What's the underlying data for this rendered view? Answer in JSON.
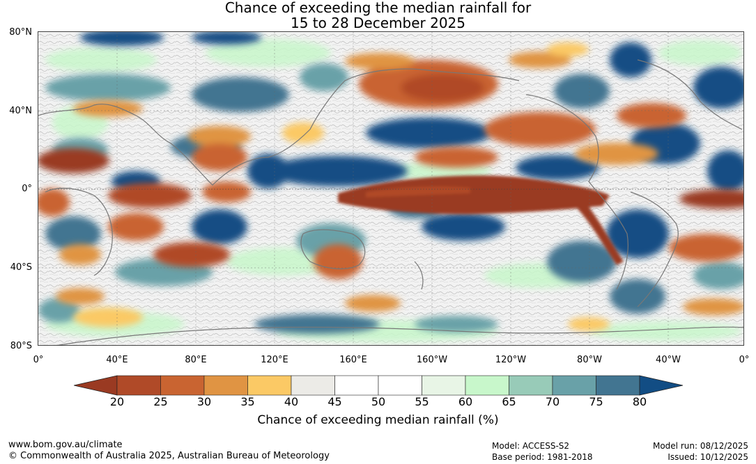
{
  "title": {
    "line1": "Chance of exceeding the median rainfall for",
    "line2": "15 to 28 December 2025"
  },
  "map": {
    "lat_labels": [
      "80°N",
      "40°N",
      "0°",
      "40°S",
      "80°S"
    ],
    "lon_labels": [
      "0°",
      "40°E",
      "80°E",
      "120°E",
      "160°E",
      "160°W",
      "120°W",
      "80°W",
      "40°W",
      "0°"
    ]
  },
  "colorbar": {
    "ticks": [
      "20",
      "25",
      "30",
      "35",
      "40",
      "45",
      "50",
      "55",
      "60",
      "65",
      "70",
      "75",
      "80"
    ],
    "colors": [
      "#9a3a22",
      "#b04a28",
      "#c96431",
      "#e09443",
      "#fbc965",
      "#ecebe7",
      "#ffffff",
      "#ffffff",
      "#e8f5e6",
      "#c8f7cb",
      "#98cbb8",
      "#69a1a8",
      "#427591",
      "#124d84"
    ],
    "label": "Chance of exceeding median rainfall (%)"
  },
  "footer": {
    "website": "www.bom.gov.au/climate",
    "copyright": "© Commonwealth of Australia 2025, Australian Bureau of Meteorology",
    "model": "Model: ACCESS-S2",
    "base_period": "Base period: 1981-2018",
    "model_run": "Model run: 08/12/2025",
    "issued": "Issued: 10/12/2025"
  }
}
